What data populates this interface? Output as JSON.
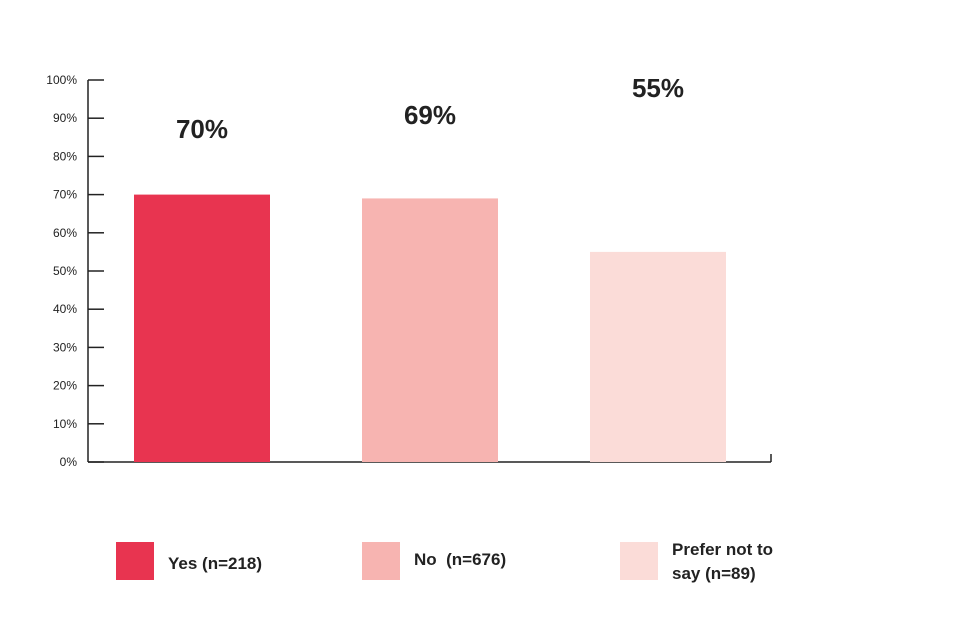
{
  "chart_data": {
    "type": "bar",
    "categories": [
      "Yes (n=218)",
      "No  (n=676)",
      "Prefer not to\nsay (n=89)"
    ],
    "values": [
      70,
      69,
      55
    ],
    "data_labels": [
      "70%",
      "69%",
      "55%"
    ],
    "colors": [
      "#e83450",
      "#f7b4b1",
      "#fbdcd8"
    ],
    "title": "",
    "xlabel": "",
    "ylabel": "",
    "ylim": [
      0,
      100
    ],
    "y_ticks": [
      "0%",
      "10%",
      "20%",
      "30%",
      "40%",
      "50%",
      "60%",
      "70%",
      "80%",
      "90%",
      "100%"
    ],
    "grid": false,
    "legend": "bottom"
  }
}
